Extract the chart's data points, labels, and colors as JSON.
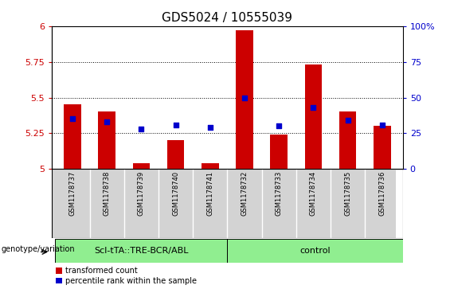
{
  "title": "GDS5024 / 10555039",
  "samples": [
    "GSM1178737",
    "GSM1178738",
    "GSM1178739",
    "GSM1178740",
    "GSM1178741",
    "GSM1178732",
    "GSM1178733",
    "GSM1178734",
    "GSM1178735",
    "GSM1178736"
  ],
  "red_values": [
    5.45,
    5.4,
    5.04,
    5.2,
    5.04,
    5.97,
    5.24,
    5.73,
    5.4,
    5.3
  ],
  "blue_percentiles": [
    35,
    33,
    28,
    31,
    29,
    50,
    30,
    43,
    34,
    31
  ],
  "group_labels": [
    "Scl-tTA::TRE-BCR/ABL",
    "control"
  ],
  "group_color": "#90EE90",
  "ylim_left": [
    5.0,
    6.0
  ],
  "ylim_right": [
    0,
    100
  ],
  "yticks_left": [
    5.0,
    5.25,
    5.5,
    5.75,
    6.0
  ],
  "yticks_right": [
    0,
    25,
    50,
    75,
    100
  ],
  "ytick_labels_left": [
    "5",
    "5.25",
    "5.5",
    "5.75",
    "6"
  ],
  "ytick_labels_right": [
    "0",
    "25",
    "50",
    "75",
    "100%"
  ],
  "grid_lines": [
    5.25,
    5.5,
    5.75
  ],
  "bar_color": "#CC0000",
  "dot_color": "#0000CC",
  "bar_width": 0.5,
  "baseline": 5.0,
  "legend_items": [
    {
      "label": "transformed count",
      "color": "#CC0000"
    },
    {
      "label": "percentile rank within the sample",
      "color": "#0000CC"
    }
  ],
  "genotype_label": "genotype/variation",
  "title_fontsize": 11,
  "tick_fontsize": 8,
  "sample_fontsize": 6,
  "group_fontsize": 8,
  "legend_fontsize": 7,
  "genotype_fontsize": 7
}
